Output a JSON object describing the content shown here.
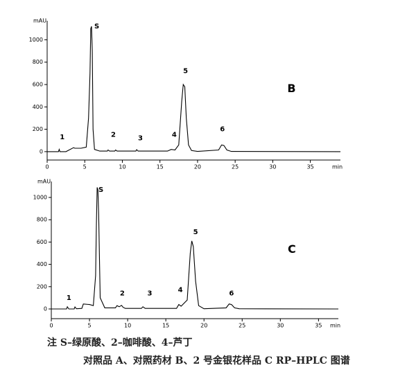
{
  "chart_data": [
    {
      "type": "line",
      "y_label": "mAU",
      "x_label": "min",
      "color": "#000000",
      "xlim": [
        0,
        39
      ],
      "ylim": [
        -75,
        1170
      ],
      "xticks": [
        0,
        5,
        10,
        15,
        20,
        25,
        30,
        35
      ],
      "yticks": [
        0,
        200,
        400,
        600,
        800,
        1000
      ],
      "x": [
        0,
        1.5,
        1.6,
        1.7,
        2.5,
        3.5,
        3.7,
        4.5,
        5.2,
        5.5,
        5.7,
        5.8,
        5.9,
        6.0,
        6.1,
        6.3,
        7,
        8,
        8.1,
        8.3,
        9,
        9.1,
        9.3,
        11.8,
        11.9,
        12.1,
        16,
        16.5,
        17,
        17.5,
        17.9,
        18.1,
        18.3,
        18.5,
        18.8,
        19.2,
        20,
        22.8,
        23.2,
        23.5,
        23.9,
        24.5,
        39
      ],
      "values": [
        0,
        0,
        20,
        0,
        0,
        35,
        30,
        30,
        40,
        300,
        700,
        1100,
        1120,
        900,
        200,
        20,
        5,
        5,
        15,
        5,
        5,
        15,
        5,
        5,
        18,
        5,
        5,
        20,
        15,
        60,
        450,
        600,
        580,
        300,
        60,
        10,
        2,
        15,
        60,
        55,
        15,
        2,
        0
      ],
      "annotations": [
        {
          "text": "S",
          "x": 6.6,
          "y": 1120
        },
        {
          "text": "1",
          "x": 2.0,
          "y": 130
        },
        {
          "text": "2",
          "x": 8.8,
          "y": 150
        },
        {
          "text": "3",
          "x": 12.4,
          "y": 120
        },
        {
          "text": "4",
          "x": 16.9,
          "y": 150
        },
        {
          "text": "5",
          "x": 18.4,
          "y": 720
        },
        {
          "text": "6",
          "x": 23.3,
          "y": 200
        },
        {
          "text": "B",
          "x": 32.5,
          "y": 560
        }
      ]
    },
    {
      "type": "line",
      "y_label": "mAU",
      "x_label": "min",
      "color": "#000000",
      "xlim": [
        0,
        37.6
      ],
      "ylim": [
        -87,
        1143
      ],
      "xticks": [
        0,
        5,
        10,
        15,
        20,
        25,
        30,
        35
      ],
      "yticks": [
        0,
        200,
        400,
        600,
        800,
        1000
      ],
      "x": [
        0,
        2.0,
        2.1,
        2.3,
        3.0,
        3.1,
        3.3,
        4.0,
        4.2,
        5.0,
        5.5,
        5.8,
        5.9,
        6.0,
        6.1,
        6.2,
        6.4,
        7,
        8.4,
        8.6,
        8.9,
        9.2,
        9.4,
        9.7,
        11.8,
        12.0,
        12.3,
        16.4,
        16.7,
        17.0,
        17.8,
        18.2,
        18.4,
        18.6,
        18.9,
        19.3,
        20,
        22.9,
        23.3,
        23.6,
        24.0,
        24.6,
        37.6
      ],
      "values": [
        0,
        0,
        20,
        0,
        0,
        18,
        2,
        5,
        45,
        40,
        30,
        300,
        750,
        1090,
        1070,
        850,
        100,
        10,
        10,
        30,
        20,
        32,
        15,
        5,
        5,
        20,
        5,
        5,
        40,
        25,
        80,
        500,
        610,
        560,
        250,
        30,
        2,
        10,
        45,
        40,
        10,
        2,
        0
      ],
      "annotations": [
        {
          "text": "S",
          "x": 6.5,
          "y": 1070
        },
        {
          "text": "1",
          "x": 2.3,
          "y": 100
        },
        {
          "text": "2",
          "x": 9.3,
          "y": 140
        },
        {
          "text": "3",
          "x": 12.9,
          "y": 140
        },
        {
          "text": "4",
          "x": 16.9,
          "y": 170
        },
        {
          "text": "5",
          "x": 18.9,
          "y": 690
        },
        {
          "text": "6",
          "x": 23.6,
          "y": 140
        },
        {
          "text": "C",
          "x": 31.5,
          "y": 530
        }
      ]
    }
  ],
  "caption": {
    "note": "注 S–绿原酸、2–咖啡酸、4–芦丁",
    "title": "对照品 A、对照药材 B、2 号金银花样品 C RP–HPLC 图谱"
  }
}
